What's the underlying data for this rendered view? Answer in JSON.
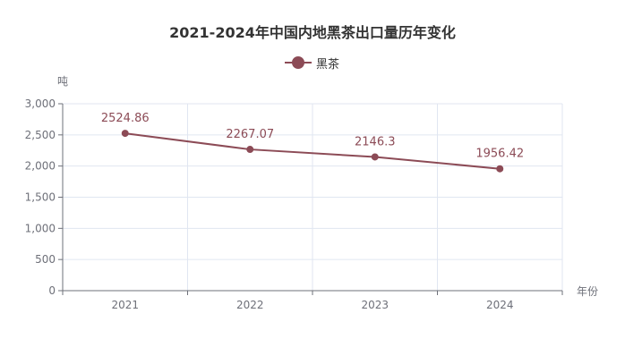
{
  "chart_data": {
    "type": "line",
    "title": "2021-2024年中国内地黑茶出口量历年变化",
    "xlabel": "年份",
    "ylabel": "吨",
    "categories": [
      "2021",
      "2022",
      "2023",
      "2024"
    ],
    "series": [
      {
        "name": "黑茶",
        "values": [
          2524.86,
          2267.07,
          2146.3,
          1956.42
        ],
        "labels": [
          "2524.86",
          "2267.07",
          "2146.3",
          "1956.42"
        ],
        "color": "#8c4b56"
      }
    ],
    "ylim": [
      0,
      3000
    ],
    "yticks": [
      0,
      500,
      1000,
      1500,
      2000,
      2500,
      3000
    ],
    "ytick_labels": [
      "0",
      "500",
      "1,000",
      "1,500",
      "2,000",
      "2,500",
      "3,000"
    ],
    "grid": true,
    "legend_position": "top-center"
  }
}
